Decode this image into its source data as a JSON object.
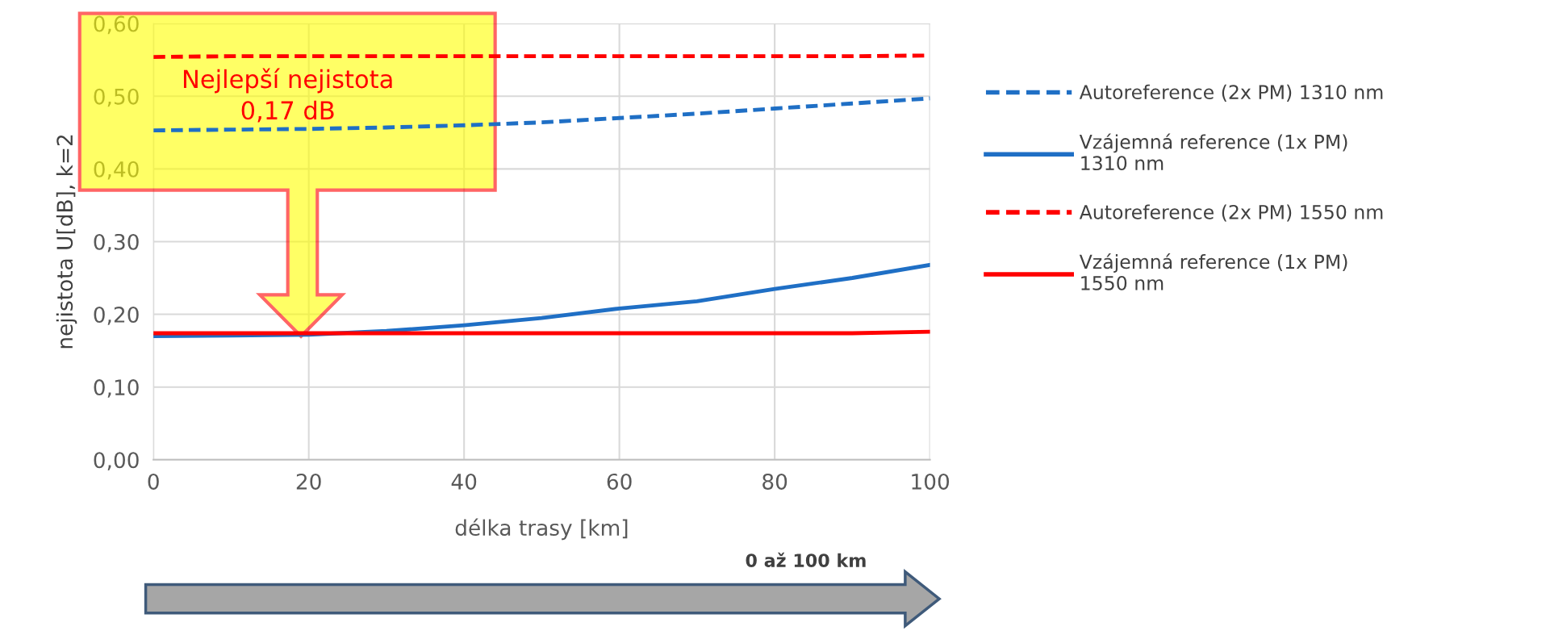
{
  "chart_data": {
    "type": "line",
    "xlabel": "délka trasy [km]",
    "ylabel": "nejistota U[dB], k=2",
    "x": [
      0,
      10,
      20,
      30,
      40,
      50,
      60,
      70,
      80,
      90,
      100
    ],
    "series": [
      {
        "name": "Autoreference (2x PM) 1310 nm",
        "color": "#1f6fc5",
        "line_style": "dashed",
        "values": [
          0.453,
          0.454,
          0.455,
          0.457,
          0.46,
          0.464,
          0.47,
          0.476,
          0.483,
          0.49,
          0.497
        ]
      },
      {
        "name": "Vzájemná reference (1x PM)\n1310 nm",
        "color": "#1f6fc5",
        "line_style": "solid",
        "values": [
          0.17,
          0.171,
          0.172,
          0.177,
          0.185,
          0.195,
          0.208,
          0.218,
          0.235,
          0.25,
          0.268
        ]
      },
      {
        "name": "Autoreference (2x PM) 1550 nm",
        "color": "#ff0000",
        "line_style": "dashed",
        "values": [
          0.554,
          0.555,
          0.555,
          0.555,
          0.555,
          0.555,
          0.555,
          0.555,
          0.555,
          0.555,
          0.556
        ]
      },
      {
        "name": "Vzájemná reference (1x PM)\n1550 nm",
        "color": "#ff0000",
        "line_style": "solid",
        "values": [
          0.174,
          0.174,
          0.174,
          0.174,
          0.174,
          0.174,
          0.174,
          0.174,
          0.174,
          0.174,
          0.176
        ]
      }
    ],
    "xlim": [
      0,
      100
    ],
    "xticks": [
      0,
      20,
      40,
      60,
      80,
      100
    ],
    "ylim": [
      0,
      0.6
    ],
    "yticks": [
      {
        "value": 0,
        "label": "0,00"
      },
      {
        "value": 0.1,
        "label": "0,10"
      },
      {
        "value": 0.2,
        "label": "0,20"
      },
      {
        "value": 0.3,
        "label": "0,30"
      },
      {
        "value": 0.4,
        "label": "0,40"
      },
      {
        "value": 0.5,
        "label": "0,50"
      },
      {
        "value": 0.6,
        "label": "0,60"
      }
    ],
    "grid": true,
    "legend": "right",
    "marker": "none",
    "annotations": [
      "Nejlepší nejistota\n0,17 dB",
      "0 až 100 km"
    ]
  }
}
